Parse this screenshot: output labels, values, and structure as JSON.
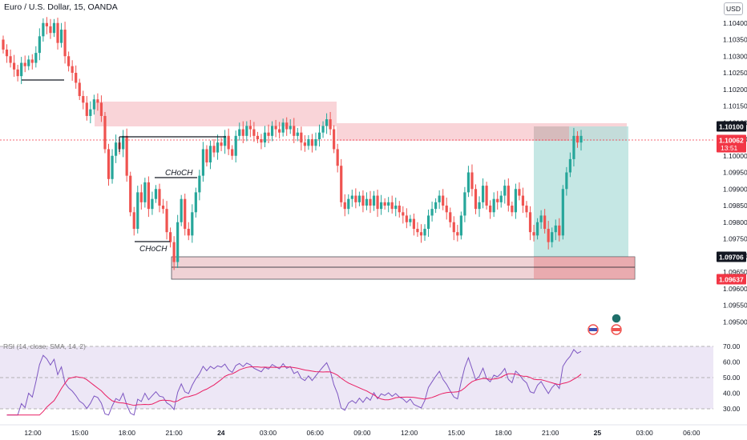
{
  "header": {
    "symbol_title": "Euro / U.S. Dollar, 15, OANDA",
    "currency_button": "USD"
  },
  "price_axis": {
    "ticks": [
      "1.10400",
      "1.10350",
      "1.10300",
      "1.10250",
      "1.10200",
      "1.10150",
      "1.10100",
      "1.10050",
      "1.10000",
      "1.09950",
      "1.09900",
      "1.09850",
      "1.09800",
      "1.09750",
      "1.09700",
      "1.09650",
      "1.09600",
      "1.09550",
      "1.09500"
    ],
    "labels": [
      {
        "text": "1.10100",
        "bg": "#131722",
        "color": "#ffffff"
      },
      {
        "text": "1.10062",
        "sub": "13:51",
        "bg": "#f23645",
        "color": "#ffffff"
      },
      {
        "text": "1.09706",
        "bg": "#131722",
        "color": "#ffffff"
      },
      {
        "text": "1.09637",
        "bg": "#f23645",
        "color": "#ffffff"
      }
    ]
  },
  "time_axis": {
    "ticks": [
      "12:00",
      "15:00",
      "18:00",
      "21:00",
      "24",
      "03:00",
      "06:00",
      "09:00",
      "12:00",
      "15:00",
      "18:00",
      "21:00",
      "25",
      "03:00",
      "06:00"
    ]
  },
  "annotations": {
    "choch_upper": "CHoCH",
    "choch_lower": "CHoCH"
  },
  "rsi": {
    "legend": "RSI (14, close, SMA, 14, 2)",
    "ticks": [
      "70.00",
      "60.00",
      "50.00",
      "40.00",
      "30.00"
    ]
  },
  "colors": {
    "up": "#26a69a",
    "down": "#ef5350",
    "supply_zone": "#f7c6cc",
    "demand_zone": "#e7c9cb",
    "target_zone": "#b2dfdb",
    "rsi_line": "#7e57c2",
    "rsi_ma": "#e91e63",
    "rsi_band": "#ede7f6"
  },
  "icons": [
    "eu-flag-icon",
    "us-flag-icon",
    "us-flag-icon"
  ],
  "chart_data": {
    "type": "candlestick",
    "title": "Euro / U.S. Dollar, 15, OANDA",
    "ylim": [
      1.0945,
      1.1045
    ],
    "current_price": 1.10062,
    "levels": {
      "stop": 1.101,
      "entry": 1.10062,
      "demand_top": 1.09706,
      "demand_bottom": 1.09637
    },
    "close": [
      1.1032,
      1.103,
      1.1028,
      1.1026,
      1.1024,
      1.1028,
      1.1027,
      1.1029,
      1.1028,
      1.1031,
      1.1036,
      1.104,
      1.1039,
      1.1037,
      1.104,
      1.1034,
      1.1038,
      1.103,
      1.1027,
      1.1025,
      1.1022,
      1.1018,
      1.1016,
      1.1012,
      1.1014,
      1.1017,
      1.1016,
      1.1012,
      1.1002,
      1.0993,
      1.1,
      1.1004,
      1.1002,
      1.1006,
      1.0994,
      1.0983,
      1.0978,
      1.0989,
      1.0986,
      1.0992,
      1.0984,
      1.0987,
      1.099,
      1.0985,
      1.0984,
      1.0977,
      1.0974,
      1.0968,
      1.098,
      1.0987,
      1.0978,
      1.0976,
      1.0983,
      1.0989,
      1.0994,
      1.1002,
      1.0998,
      1.1003,
      1.1001,
      1.1004,
      1.1003,
      1.1006,
      1.1002,
      1.1,
      1.1006,
      1.1008,
      1.1006,
      1.1009,
      1.1008,
      1.1006,
      1.1005,
      1.1004,
      1.1007,
      1.1006,
      1.1009,
      1.1008,
      1.1007,
      1.101,
      1.1008,
      1.1009,
      1.1006,
      1.1007,
      1.1004,
      1.1003,
      1.1005,
      1.1003,
      1.1005,
      1.1007,
      1.1009,
      1.1011,
      1.1008,
      1.1002,
      1.0997,
      1.0986,
      1.0984,
      1.0987,
      1.0988,
      1.0986,
      1.0988,
      1.0985,
      1.0987,
      1.0985,
      1.0988,
      1.0984,
      1.0986,
      1.0985,
      1.0986,
      1.0984,
      1.0985,
      1.0983,
      1.0982,
      1.098,
      1.0981,
      1.0978,
      1.0977,
      1.0976,
      1.0978,
      1.0982,
      1.0984,
      1.0986,
      1.0988,
      1.0985,
      1.0983,
      1.098,
      1.0977,
      1.0976,
      1.0982,
      1.0989,
      1.0995,
      1.099,
      1.0984,
      1.0986,
      1.0991,
      1.0985,
      1.0983,
      1.0987,
      1.0986,
      1.0988,
      1.0991,
      1.0985,
      1.0983,
      1.099,
      1.0988,
      1.0985,
      1.0983,
      1.0977,
      1.0976,
      1.098,
      1.0982,
      1.0978,
      1.0974,
      1.0977,
      1.0979,
      1.0976,
      1.099,
      1.0995,
      1.0999,
      1.1006,
      1.1004,
      1.1006
    ]
  }
}
